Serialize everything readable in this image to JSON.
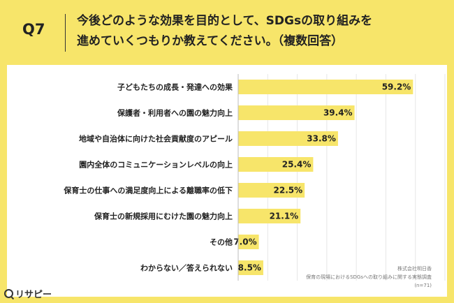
{
  "question": {
    "number": "Q7",
    "line1": "今後どのような効果を目的として、SDGsの取り組みを",
    "line2": "進めていくつもりか教えてください。（複数回答）"
  },
  "chart_data": {
    "type": "bar",
    "orientation": "horizontal",
    "categories": [
      "子どもたちの成長・発達への効果",
      "保護者・利用者への園の魅力向上",
      "地域や自治体に向けた社会貢献度のアピール",
      "園内全体のコミュニケーションレベルの向上",
      "保育士の仕事への満足度向上による離職率の低下",
      "保育士の新規採用にむけた園の魅力向上",
      "その他",
      "わからない／答えられない"
    ],
    "values": [
      59.2,
      39.4,
      33.8,
      25.4,
      22.5,
      21.1,
      7.0,
      8.5
    ],
    "value_labels": [
      "59.2%",
      "39.4%",
      "33.8%",
      "25.4%",
      "22.5%",
      "21.1%",
      "7.0%",
      "8.5%"
    ],
    "xlim": [
      0,
      70
    ],
    "grid": true,
    "bar_color": "#F7E56A"
  },
  "footer": {
    "line1": "株式会社明日香",
    "line2": "保育の現場におけるSDGsへの取り組みに関する実態調査",
    "line3": "(n=71)"
  },
  "logo": {
    "text": "リサピー",
    "icon": "magnifier-icon"
  }
}
